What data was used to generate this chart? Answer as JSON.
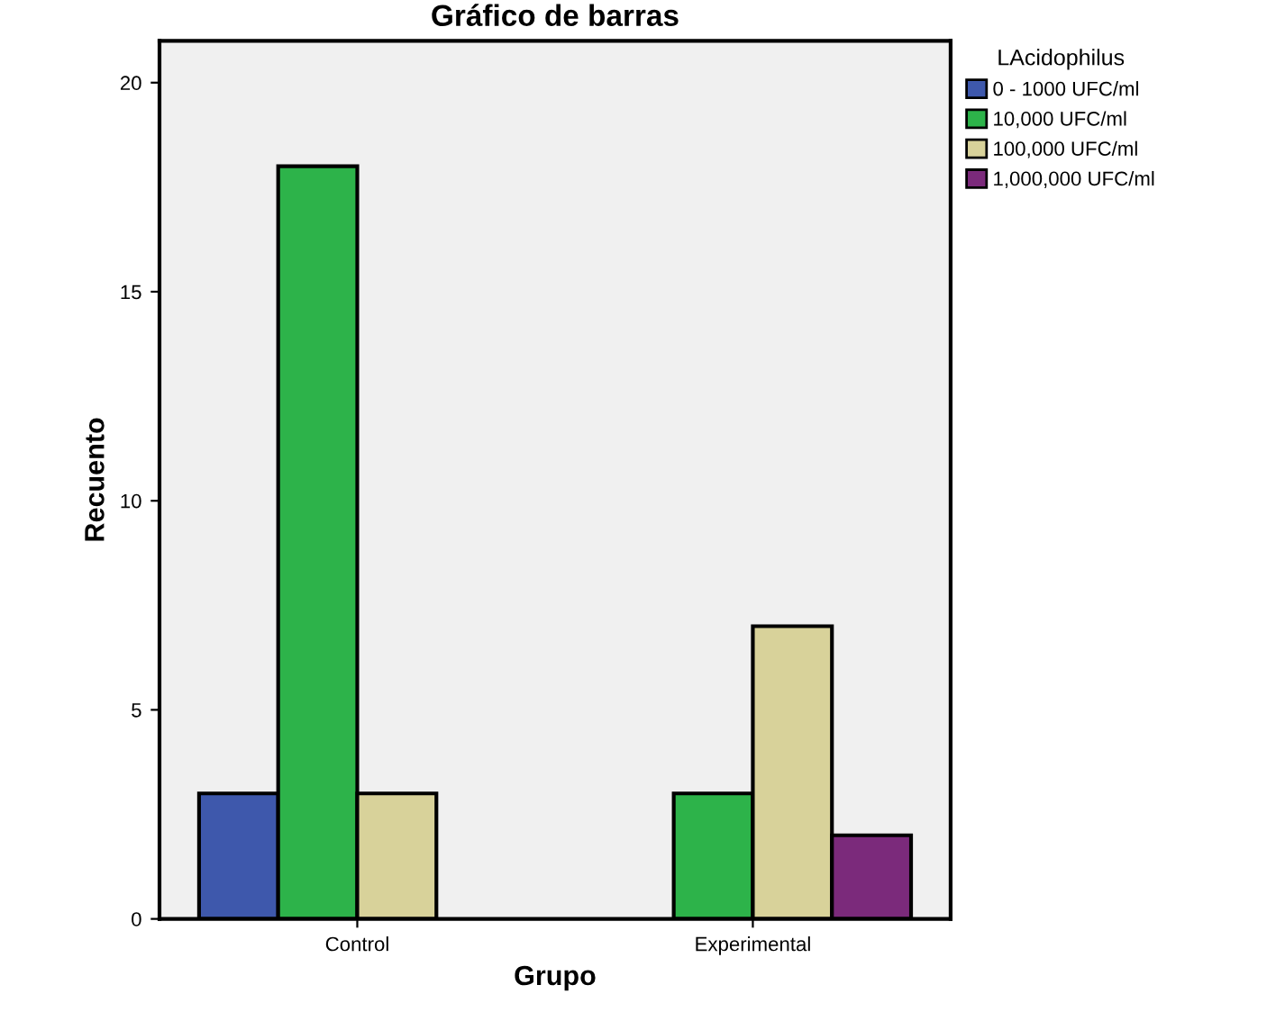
{
  "chart_data": {
    "type": "bar",
    "title": "Gráfico de barras",
    "xlabel": "Grupo",
    "ylabel": "Recuento",
    "legend_title": "LAcidophilus",
    "categories": [
      "Control",
      "Experimental"
    ],
    "series": [
      {
        "name": "0 - 1000 UFC/ml",
        "color": "#3e58ac",
        "values": [
          3,
          null
        ]
      },
      {
        "name": "10,000 UFC/ml",
        "color": "#2db34a",
        "values": [
          18,
          3
        ]
      },
      {
        "name": "100,000 UFC/ml",
        "color": "#d8d29a",
        "values": [
          3,
          7
        ]
      },
      {
        "name": "1,000,000 UFC/ml",
        "color": "#7b2a7b",
        "values": [
          null,
          2
        ]
      }
    ],
    "ylim": [
      0,
      21
    ],
    "yticks": [
      0,
      5,
      10,
      15,
      20
    ],
    "grid": false,
    "legend": "top right"
  }
}
